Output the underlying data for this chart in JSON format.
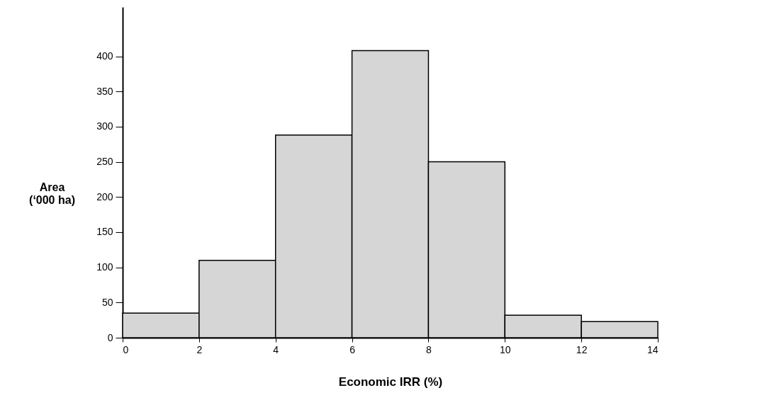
{
  "chart_data": {
    "type": "histogram",
    "xlabel": "Economic IRR (%)",
    "ylabel": "Area\n(‘000 ha)",
    "bins": [
      0,
      2,
      4,
      6,
      8,
      10,
      12,
      14
    ],
    "values": [
      35,
      110,
      288,
      408,
      250,
      32,
      23
    ],
    "color": "#d6d6d6",
    "xlim": [
      0,
      14
    ],
    "xticks": [
      0,
      2,
      4,
      6,
      8,
      10,
      12,
      14
    ],
    "ylim": [
      0,
      470
    ],
    "yticks": [
      0,
      50,
      100,
      150,
      200,
      250,
      300,
      350,
      400
    ],
    "grid": false,
    "legend": false
  }
}
